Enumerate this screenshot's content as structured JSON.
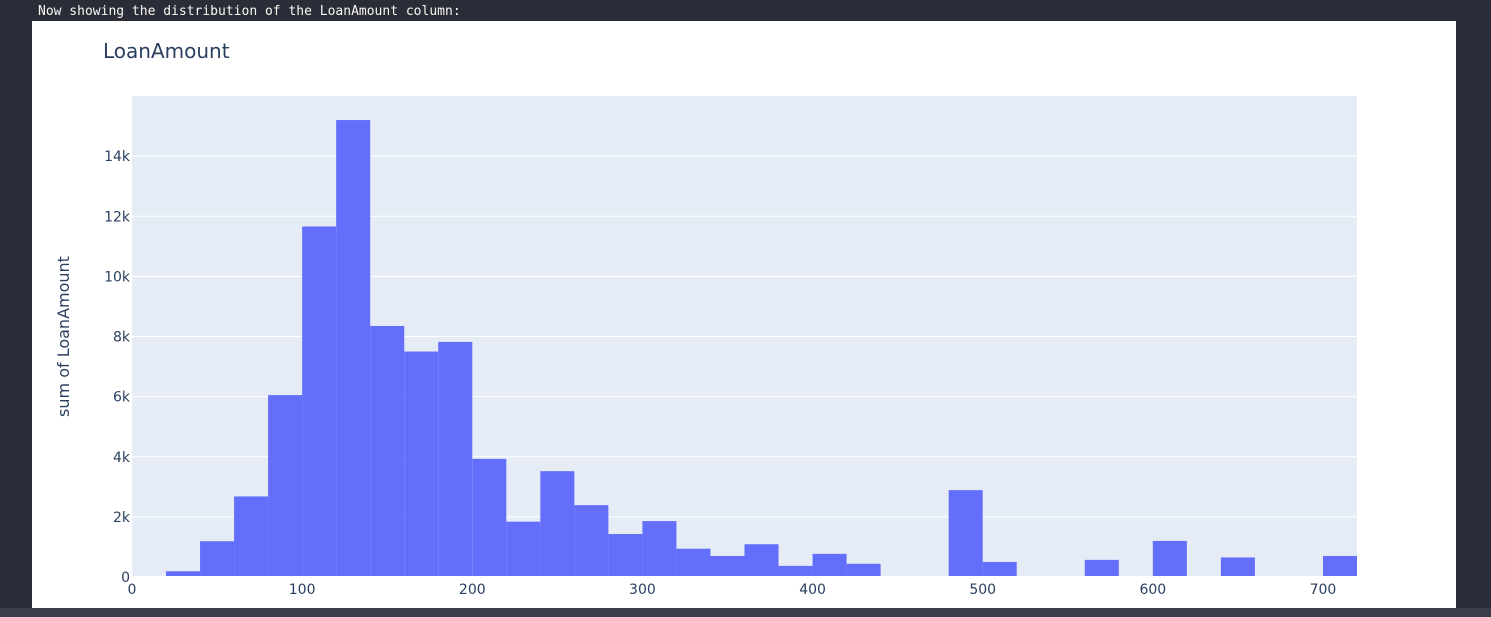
{
  "output": {
    "header_text": "Now showing the distribution of the LoanAmount column:"
  },
  "colors": {
    "bar": "#636efa",
    "plot_bg": "#e5ecf6",
    "grid": "#ffffff",
    "text": "#2a3f5f"
  },
  "chart_data": {
    "type": "bar",
    "title": "LoanAmount",
    "xlabel": "",
    "ylabel": "sum of LoanAmount",
    "bin_width": 20,
    "xlim": [
      0,
      720
    ],
    "ylim": [
      0,
      16000
    ],
    "grid": true,
    "x_ticks": [
      {
        "value": 0,
        "label": "0"
      },
      {
        "value": 100,
        "label": "100"
      },
      {
        "value": 200,
        "label": "200"
      },
      {
        "value": 300,
        "label": "300"
      },
      {
        "value": 400,
        "label": "400"
      },
      {
        "value": 500,
        "label": "500"
      },
      {
        "value": 600,
        "label": "600"
      },
      {
        "value": 700,
        "label": "700"
      }
    ],
    "y_ticks": [
      {
        "value": 0,
        "label": "0"
      },
      {
        "value": 2000,
        "label": "2k"
      },
      {
        "value": 4000,
        "label": "4k"
      },
      {
        "value": 6000,
        "label": "6k"
      },
      {
        "value": 8000,
        "label": "8k"
      },
      {
        "value": 10000,
        "label": "10k"
      },
      {
        "value": 12000,
        "label": "12k"
      },
      {
        "value": 14000,
        "label": "14k"
      }
    ],
    "bins": [
      {
        "x0": 0,
        "value": 9
      },
      {
        "x0": 20,
        "value": 190
      },
      {
        "x0": 40,
        "value": 1190
      },
      {
        "x0": 60,
        "value": 2680
      },
      {
        "x0": 80,
        "value": 6050
      },
      {
        "x0": 100,
        "value": 11660
      },
      {
        "x0": 120,
        "value": 15200
      },
      {
        "x0": 140,
        "value": 8350
      },
      {
        "x0": 160,
        "value": 7500
      },
      {
        "x0": 180,
        "value": 7820
      },
      {
        "x0": 200,
        "value": 3930
      },
      {
        "x0": 220,
        "value": 1840
      },
      {
        "x0": 240,
        "value": 3520
      },
      {
        "x0": 260,
        "value": 2390
      },
      {
        "x0": 280,
        "value": 1430
      },
      {
        "x0": 300,
        "value": 1860
      },
      {
        "x0": 320,
        "value": 940
      },
      {
        "x0": 340,
        "value": 700
      },
      {
        "x0": 360,
        "value": 1090
      },
      {
        "x0": 380,
        "value": 370
      },
      {
        "x0": 400,
        "value": 770
      },
      {
        "x0": 420,
        "value": 440
      },
      {
        "x0": 440,
        "value": 0
      },
      {
        "x0": 460,
        "value": 0
      },
      {
        "x0": 480,
        "value": 2890
      },
      {
        "x0": 500,
        "value": 500
      },
      {
        "x0": 520,
        "value": 0
      },
      {
        "x0": 540,
        "value": 0
      },
      {
        "x0": 560,
        "value": 570
      },
      {
        "x0": 580,
        "value": 0
      },
      {
        "x0": 600,
        "value": 1200
      },
      {
        "x0": 620,
        "value": 0
      },
      {
        "x0": 640,
        "value": 650
      },
      {
        "x0": 660,
        "value": 0
      },
      {
        "x0": 680,
        "value": 0
      },
      {
        "x0": 700,
        "value": 700
      }
    ]
  }
}
